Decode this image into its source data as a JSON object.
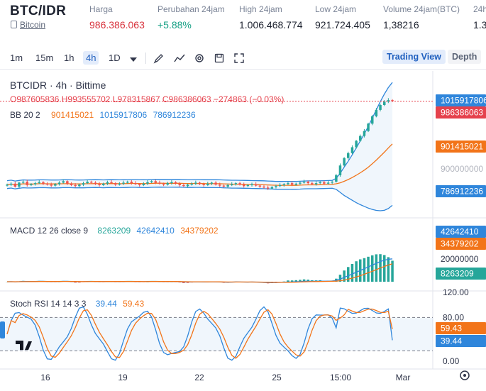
{
  "ticker": {
    "pair": "BTC/IDR",
    "coin": "Bitcoin",
    "stats": [
      {
        "label": "Harga",
        "value": "986.386.063",
        "tone": "red"
      },
      {
        "label": "Perubahan 24jam",
        "value": "+5.88%",
        "tone": "green"
      },
      {
        "label": "High 24jam",
        "value": "1.006.468.774",
        "tone": "dark"
      },
      {
        "label": "Low 24jam",
        "value": "921.724.405",
        "tone": "dark"
      },
      {
        "label": "Volume 24jam(BTC)",
        "value": "1,38216",
        "tone": "dark"
      },
      {
        "label": "24h",
        "value": "1.3",
        "tone": "dark"
      }
    ]
  },
  "toolbar": {
    "timeframes": [
      "1m",
      "15m",
      "1h",
      "4h",
      "1D"
    ],
    "active_timeframe": "4h",
    "tools": [
      "draw-icon",
      "indicator-icon",
      "settings-icon",
      "save-icon",
      "fullscreen-icon"
    ],
    "views": [
      "Trading View",
      "Depth"
    ]
  },
  "legend": {
    "symbol": "BTCIDR · 4h · Bittime",
    "ohlc": "O987605836 H993555702 L978315867 C986386063 −274863 (−0.03%)",
    "bb_name": "BB 20 2",
    "bb_basis": "901415021",
    "bb_upper": "1015917806",
    "bb_lower": "786912236",
    "macd_name": "MACD 12 26 close 9",
    "macd_hist": "8263209",
    "macd_line": "42642410",
    "macd_signal": "34379202",
    "stoch_name": "Stoch RSI 14 14 3 3",
    "stoch_k": "39.44",
    "stoch_d": "59.43"
  },
  "price_axis": {
    "main_labels": [
      {
        "text": "1015917806",
        "bg": "#2f86db"
      },
      {
        "text": "986386063",
        "bg": "#e5414c"
      },
      {
        "text": "901415021",
        "bg": "#f27419"
      },
      {
        "text": "786912236",
        "bg": "#2f86db"
      }
    ],
    "main_faded": "900000000",
    "macd_labels": [
      {
        "text": "42642410",
        "bg": "#2f86db"
      },
      {
        "text": "34379202",
        "bg": "#f27419"
      },
      {
        "text": "8263209",
        "bg": "#26a69a"
      }
    ],
    "macd_faded": "20000000",
    "stoch_ticks": [
      "120.00",
      "80.00",
      "0.00"
    ],
    "stoch_labels": [
      {
        "text": "59.43",
        "bg": "#f27419"
      },
      {
        "text": "39.44",
        "bg": "#2f86db"
      }
    ]
  },
  "time_axis": [
    "16",
    "19",
    "22",
    "25",
    "15:00",
    "Mar"
  ],
  "colors": {
    "up": "#26a69a",
    "down": "#ef5350",
    "bb_band": "#2f86db",
    "bb_basis": "#f27419",
    "macd": "#2f86db",
    "signal": "#f27419"
  },
  "chart_data": {
    "type": "candlestick",
    "close_series": [
      816,
      818,
      812,
      820,
      822,
      815,
      817,
      819,
      821,
      818,
      816,
      814,
      817,
      820,
      823,
      818,
      815,
      813,
      816,
      819,
      822,
      820,
      817,
      815,
      818,
      821,
      819,
      816,
      818,
      820,
      822,
      819,
      817,
      815,
      818,
      821,
      823,
      820,
      818,
      816,
      819,
      821,
      818,
      815,
      813,
      816,
      818,
      820,
      817,
      815,
      818,
      820,
      816,
      814,
      812,
      815,
      817,
      819,
      816,
      813,
      815,
      817,
      814,
      812,
      810,
      808,
      811,
      813,
      815,
      817,
      819,
      816,
      818,
      820,
      822,
      819,
      817,
      819,
      821,
      818,
      820,
      822,
      835,
      855,
      870,
      880,
      892,
      905,
      915,
      925,
      940,
      955,
      968,
      978,
      985,
      988,
      986
    ]
  }
}
